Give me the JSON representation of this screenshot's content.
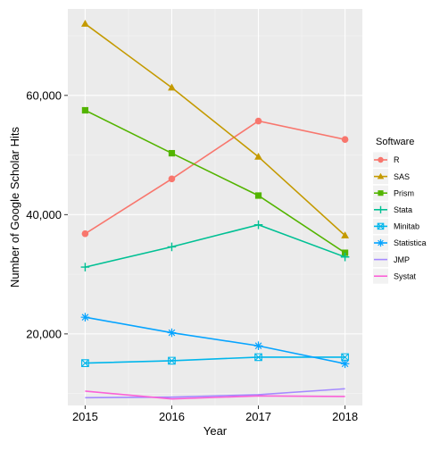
{
  "chart_data": {
    "type": "line",
    "xlabel": "Year",
    "ylabel": "Number of Google Scholar Hits",
    "x": [
      2015,
      2016,
      2017,
      2018
    ],
    "x_tick_labels": [
      "2015",
      "2016",
      "2017",
      "2018"
    ],
    "xlim": [
      2014.8,
      2018.2
    ],
    "ylim": [
      8000,
      74500
    ],
    "y_ticks": [
      20000,
      40000,
      60000
    ],
    "y_tick_labels": [
      "20,000",
      "40,000",
      "60,000"
    ],
    "grid": true,
    "legend": {
      "title": "Software",
      "placement": "right"
    },
    "series": [
      {
        "name": "R",
        "color": "#F8766D",
        "marker": "circle",
        "values": [
          36800,
          46000,
          55700,
          52600
        ]
      },
      {
        "name": "SAS",
        "color": "#C49A00",
        "marker": "triangle",
        "values": [
          72000,
          61300,
          49700,
          36500
        ]
      },
      {
        "name": "Prism",
        "color": "#53B400",
        "marker": "square",
        "values": [
          57500,
          50300,
          43200,
          33600
        ]
      },
      {
        "name": "Stata",
        "color": "#00C094",
        "marker": "plus",
        "values": [
          31200,
          34600,
          38300,
          32900
        ]
      },
      {
        "name": "Minitab",
        "color": "#00B6EB",
        "marker": "square-cross",
        "values": [
          15100,
          15500,
          16100,
          16100
        ]
      },
      {
        "name": "Statistica",
        "color": "#06A4FF",
        "marker": "asterisk",
        "values": [
          22800,
          20200,
          18000,
          15000
        ]
      },
      {
        "name": "JMP",
        "color": "#A58AFF",
        "marker": "none",
        "values": [
          9300,
          9400,
          9800,
          10800
        ]
      },
      {
        "name": "Systat",
        "color": "#FB61D7",
        "marker": "none",
        "values": [
          10400,
          9100,
          9600,
          9500
        ]
      }
    ]
  }
}
